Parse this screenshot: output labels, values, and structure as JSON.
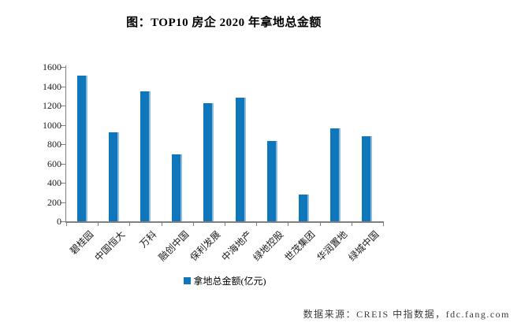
{
  "title": "图：TOP10 房企 2020 年拿地总金额",
  "source": "数据来源：CREIS 中指数据，fdc.fang.com",
  "colors": {
    "bar": "#0F76BC",
    "bar_edge_highlight": "#8FBBDD",
    "axis": "#808080",
    "tick_text": "#1a1a1a",
    "title_text": "#000000",
    "source_text": "#3a3a3a"
  },
  "chart_data": {
    "type": "bar",
    "title": "图：TOP10 房企 2020 年拿地总金额",
    "categories": [
      "碧桂园",
      "中国恒大",
      "万科",
      "融创中国",
      "保利发展",
      "中海地产",
      "绿地控股",
      "世茂集团",
      "华润置地",
      "绿城中国"
    ],
    "values": [
      1510,
      920,
      1345,
      695,
      1225,
      1285,
      830,
      280,
      965,
      885
    ],
    "series_name": "拿地总金额(亿元)",
    "legend": [
      "拿地总金额(亿元)"
    ],
    "legend_position": "bottom",
    "xlabel": "",
    "ylabel": "",
    "ylim": [
      0,
      1600
    ],
    "yticks": [
      0,
      200,
      400,
      600,
      800,
      1000,
      1200,
      1400,
      1600
    ],
    "grid": false
  }
}
